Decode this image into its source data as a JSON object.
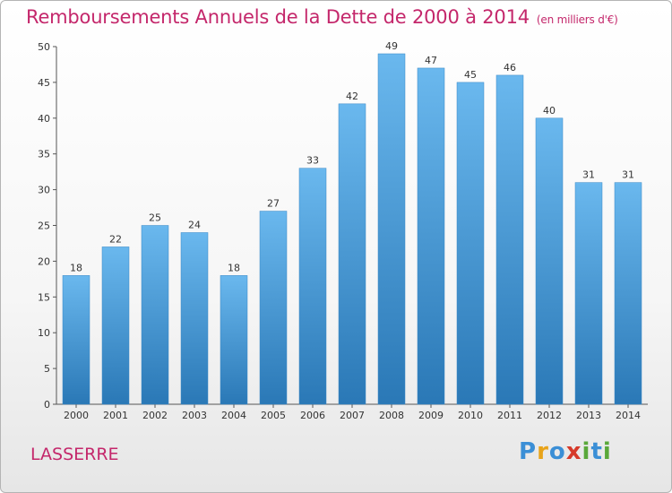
{
  "chart_data": {
    "type": "bar",
    "title": "Remboursements Annuels de la Dette de 2000 à 2014",
    "subtitle": "(en milliers d'€)",
    "categories": [
      "2000",
      "2001",
      "2002",
      "2003",
      "2004",
      "2005",
      "2006",
      "2007",
      "2008",
      "2009",
      "2010",
      "2011",
      "2012",
      "2013",
      "2014"
    ],
    "values": [
      18,
      22,
      25,
      24,
      18,
      27,
      33,
      42,
      49,
      47,
      45,
      46,
      40,
      31,
      31
    ],
    "xlabel": "",
    "ylabel": "",
    "ylim": [
      0,
      50
    ],
    "yticks": [
      0,
      5,
      10,
      15,
      20,
      25,
      30,
      35,
      40,
      45,
      50
    ],
    "grid": false,
    "legend": "none"
  },
  "footer": {
    "commune": "LASSERRE",
    "logo_letters": [
      "P",
      "r",
      "o",
      "x",
      "i",
      "t",
      "i"
    ],
    "logo_colors": [
      "#3b8fd6",
      "#e8a319",
      "#3b8fd6",
      "#d63a2a",
      "#5aa83a",
      "#3b8fd6",
      "#5aa83a"
    ]
  },
  "colors": {
    "title": "#c4276b",
    "bar_top": "#6ab8ee",
    "bar_bottom": "#2a78b6",
    "axis": "#555555"
  }
}
